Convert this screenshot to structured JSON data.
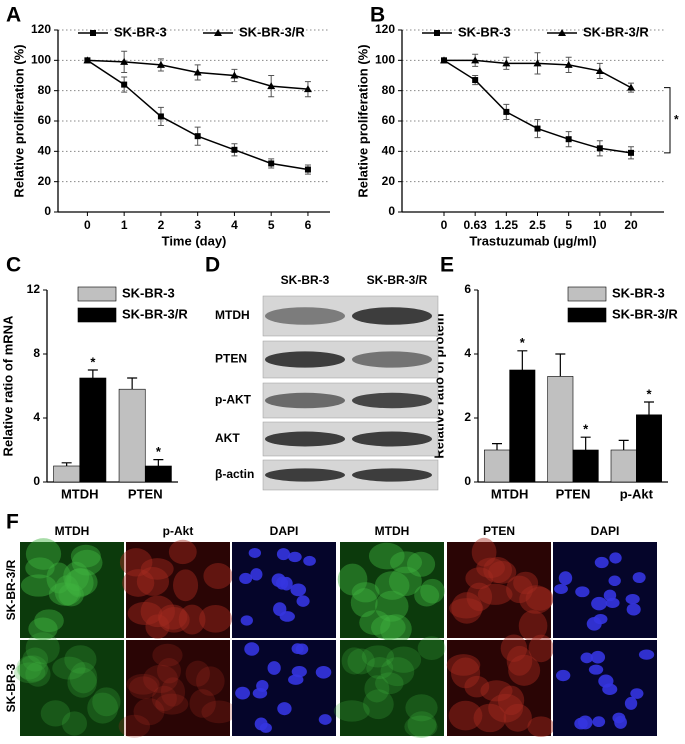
{
  "chart_data": [
    {
      "type": "line",
      "panel": "A",
      "x_label": "Time (day)",
      "y_label": "Relative proliferation (%)",
      "x": [
        0,
        1,
        2,
        3,
        4,
        5,
        6
      ],
      "xlim": [
        -0.8,
        6.6
      ],
      "xticks": [
        0,
        1,
        2,
        3,
        4,
        5,
        6
      ],
      "ylim": [
        0,
        120
      ],
      "yticks": [
        0,
        20,
        40,
        60,
        80,
        100,
        120
      ],
      "grid": true,
      "legend": "top",
      "series": [
        {
          "name": "SK-BR-3",
          "color": "#000000",
          "marker": "square",
          "values": [
            100,
            84,
            63,
            50,
            41,
            32,
            28
          ],
          "errors": [
            0,
            5,
            6,
            6,
            4,
            3,
            3
          ]
        },
        {
          "name": "SK-BR-3/R",
          "color": "#000000",
          "marker": "triangle",
          "values": [
            100,
            99,
            97,
            92,
            90,
            83,
            81
          ],
          "errors": [
            0,
            7,
            4,
            5,
            4,
            7,
            5
          ]
        }
      ]
    },
    {
      "type": "line",
      "panel": "B",
      "x_label": "Trastuzumab (μg/ml)",
      "y_label": "Relative proliferation (%)",
      "categories": [
        "0",
        "0.63",
        "1.25",
        "2.5",
        "5",
        "10",
        "20"
      ],
      "ylim": [
        0,
        120
      ],
      "yticks": [
        0,
        20,
        40,
        60,
        80,
        100,
        120
      ],
      "grid": true,
      "legend": "top",
      "annotation": "*",
      "series": [
        {
          "name": "SK-BR-3",
          "color": "#000000",
          "marker": "square",
          "values": [
            100,
            87,
            66,
            55,
            48,
            42,
            39
          ],
          "errors": [
            0,
            3,
            5,
            6,
            5,
            5,
            4
          ]
        },
        {
          "name": "SK-BR-3/R",
          "color": "#000000",
          "marker": "triangle",
          "values": [
            100,
            100,
            98,
            98,
            97,
            93,
            82
          ],
          "errors": [
            0,
            4,
            4,
            7,
            5,
            5,
            3
          ]
        }
      ]
    },
    {
      "type": "bar",
      "panel": "C",
      "y_label": "Relative ratio of mRNA",
      "categories": [
        "MTDH",
        "PTEN"
      ],
      "ylim": [
        0,
        12
      ],
      "yticks": [
        0,
        4,
        8,
        12
      ],
      "grid": false,
      "legend": "upper right",
      "series": [
        {
          "name": "SK-BR-3",
          "color": "#c0c0c0",
          "values": [
            1.0,
            5.8
          ],
          "errors": [
            0.2,
            0.7
          ],
          "annotations": [
            null,
            null
          ]
        },
        {
          "name": "SK-BR-3/R",
          "color": "#000000",
          "values": [
            6.5,
            1.0
          ],
          "errors": [
            0.5,
            0.4
          ],
          "annotations": [
            "*",
            "*"
          ]
        }
      ]
    },
    {
      "type": "bar",
      "panel": "E",
      "y_label": "Relative ratio of protein",
      "categories": [
        "MTDH",
        "PTEN",
        "p-Akt"
      ],
      "ylim": [
        0,
        6
      ],
      "yticks": [
        0,
        2,
        4,
        6
      ],
      "grid": false,
      "legend": "upper right",
      "series": [
        {
          "name": "SK-BR-3",
          "color": "#c0c0c0",
          "values": [
            1.0,
            3.3,
            1.0
          ],
          "errors": [
            0.2,
            0.7,
            0.3
          ],
          "annotations": [
            null,
            null,
            null
          ]
        },
        {
          "name": "SK-BR-3/R",
          "color": "#000000",
          "values": [
            3.5,
            1.0,
            2.1
          ],
          "errors": [
            0.6,
            0.4,
            0.4
          ],
          "annotations": [
            "*",
            "*",
            "*"
          ]
        }
      ]
    }
  ],
  "blot": {
    "panel": "D",
    "columns": [
      "SK-BR-3",
      "SK-BR-3/R"
    ],
    "rows": [
      "MTDH",
      "PTEN",
      "p-AKT",
      "AKT",
      "β-actin"
    ]
  },
  "images": {
    "panel": "F",
    "columns": [
      "MTDH",
      "p-Akt",
      "DAPI",
      "MTDH",
      "PTEN",
      "DAPI"
    ],
    "rows": [
      "SK-BR-3/R",
      "SK-BR-3"
    ]
  }
}
